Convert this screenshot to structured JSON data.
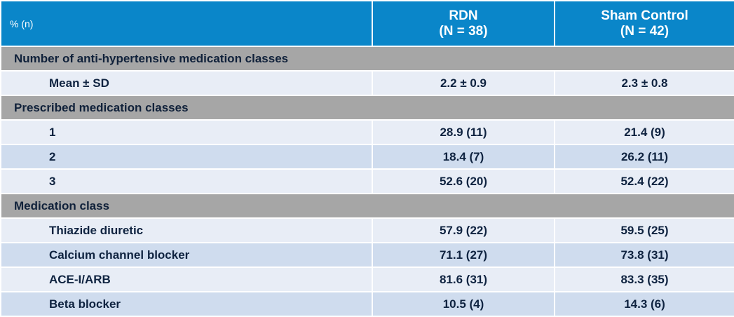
{
  "header": {
    "label": "% (n)",
    "columns": [
      {
        "name": "RDN",
        "n": "(N = 38)"
      },
      {
        "name": "Sham Control",
        "n": "(N = 42)"
      }
    ]
  },
  "sections": [
    {
      "title": "Number of anti-hypertensive medication classes",
      "rows": [
        {
          "label": "Mean ± SD",
          "rdn": "2.2 ± 0.9",
          "sham": "2.3 ± 0.8"
        }
      ]
    },
    {
      "title": "Prescribed medication classes",
      "rows": [
        {
          "label": "1",
          "rdn": "28.9 (11)",
          "sham": "21.4 (9)"
        },
        {
          "label": "2",
          "rdn": "18.4 (7)",
          "sham": "26.2 (11)"
        },
        {
          "label": "3",
          "rdn": "52.6 (20)",
          "sham": "52.4 (22)"
        }
      ]
    },
    {
      "title": "Medication class",
      "rows": [
        {
          "label": "Thiazide diuretic",
          "rdn": "57.9 (22)",
          "sham": "59.5 (25)"
        },
        {
          "label": "Calcium channel blocker",
          "rdn": "71.1 (27)",
          "sham": "73.8 (31)"
        },
        {
          "label": "ACE-I/ARB",
          "rdn": "81.6 (31)",
          "sham": "83.3 (35)"
        },
        {
          "label": "Beta blocker",
          "rdn": "10.5 (4)",
          "sham": "14.3 (6)"
        }
      ]
    }
  ],
  "colors": {
    "header_bg": "#0a86c9",
    "section_bg": "#a6a6a6",
    "row_light": "#e8edf6",
    "row_dark": "#cfdcee"
  }
}
